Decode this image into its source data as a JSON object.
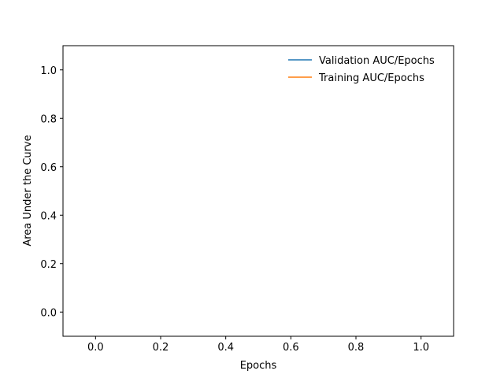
{
  "chart_data": {
    "type": "line",
    "title": "",
    "xlabel": "Epochs",
    "ylabel": "Area Under the Curve",
    "xlim": [
      -0.1,
      1.1
    ],
    "ylim": [
      -0.1,
      1.1
    ],
    "xticks": [
      "0.0",
      "0.2",
      "0.4",
      "0.6",
      "0.8",
      "1.0"
    ],
    "yticks": [
      "0.0",
      "0.2",
      "0.4",
      "0.6",
      "0.8",
      "1.0"
    ],
    "grid": false,
    "legend_position": "top-right",
    "series": [
      {
        "name": "Validation AUC/Epochs",
        "color": "#1f77b4",
        "x": [],
        "y": []
      },
      {
        "name": "Training AUC/Epochs",
        "color": "#ff7f0e",
        "x": [],
        "y": []
      }
    ]
  }
}
